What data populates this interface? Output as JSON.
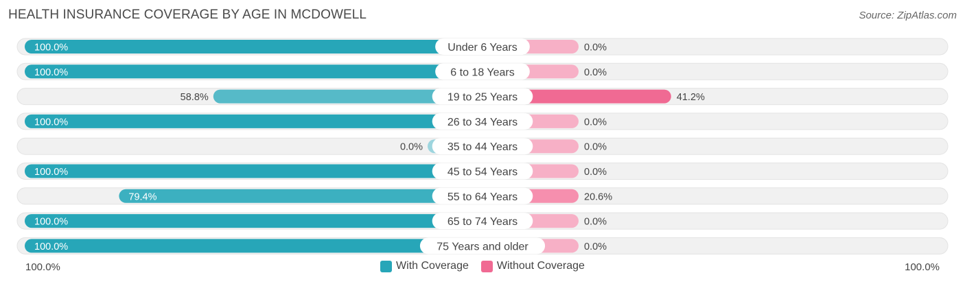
{
  "header": {
    "title": "HEALTH INSURANCE COVERAGE BY AGE IN MCDOWELL",
    "source": "Source: ZipAtlas.com"
  },
  "colors": {
    "with_full": "#27a6b8",
    "with_light": "#9dd5de",
    "without_full": "#f06a93",
    "without_light": "#f7b0c6",
    "track": "#f1f1f1"
  },
  "legend": {
    "with_label": "With Coverage",
    "without_label": "Without Coverage"
  },
  "axis": {
    "left_label": "100.0%",
    "right_label": "100.0%"
  },
  "chart_data": {
    "type": "bar",
    "orientation": "diverging-horizontal",
    "categories": [
      "Under 6 Years",
      "6 to 18 Years",
      "19 to 25 Years",
      "26 to 34 Years",
      "35 to 44 Years",
      "45 to 54 Years",
      "55 to 64 Years",
      "65 to 74 Years",
      "75 Years and older"
    ],
    "series": [
      {
        "name": "With Coverage",
        "values": [
          100.0,
          100.0,
          58.8,
          100.0,
          0.0,
          100.0,
          79.4,
          100.0,
          100.0
        ]
      },
      {
        "name": "Without Coverage",
        "values": [
          0.0,
          0.0,
          41.2,
          0.0,
          0.0,
          0.0,
          20.6,
          0.0,
          0.0
        ]
      }
    ],
    "value_labels_with": [
      "100.0%",
      "100.0%",
      "58.8%",
      "100.0%",
      "0.0%",
      "100.0%",
      "79.4%",
      "100.0%",
      "100.0%"
    ],
    "value_labels_without": [
      "0.0%",
      "0.0%",
      "41.2%",
      "0.0%",
      "0.0%",
      "0.0%",
      "20.6%",
      "0.0%",
      "0.0%"
    ],
    "xlim": [
      0,
      100
    ],
    "legend_position": "bottom-center"
  }
}
